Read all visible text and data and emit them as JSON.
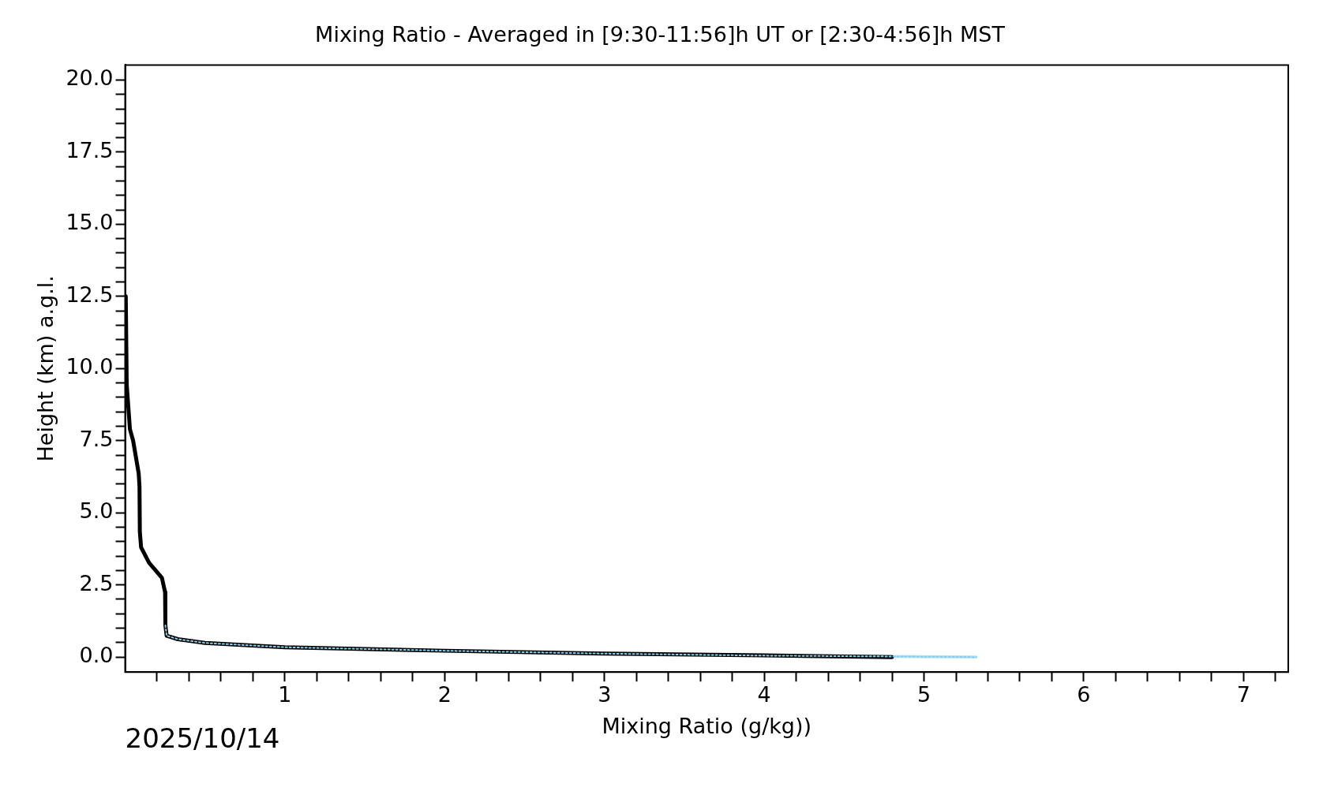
{
  "chart_data": {
    "type": "line",
    "title": "Mixing Ratio - Averaged in [9:30-11:56]h UT or [2:30-4:56]h MST",
    "xlabel": "Mixing Ratio (g/kg))",
    "ylabel": "Height (km) a.g.l.",
    "annotations": [
      "2025/10/14"
    ],
    "series": [
      {
        "color": "#000000",
        "line_style": "solid",
        "x": [
          0.004,
          0.01,
          0.03,
          0.05,
          0.085,
          0.09,
          0.092,
          0.1,
          0.15,
          0.23,
          0.25,
          0.252,
          0.26,
          0.33,
          0.5,
          1,
          2,
          3,
          4,
          4.8
        ],
        "values": [
          12.5,
          9.44,
          7.9,
          7.5,
          6.36,
          5.9,
          4.35,
          3.8,
          3.27,
          2.75,
          2.25,
          1.1,
          0.74,
          0.62,
          0.49,
          0.34,
          0.22,
          0.12,
          0.06,
          0.0
        ]
      },
      {
        "color": "#87ceeb",
        "line_style": "dotted",
        "x": [
          0.252,
          0.26,
          0.33,
          0.5,
          1,
          2,
          3,
          4,
          4.8,
          5.33
        ],
        "values": [
          1.1,
          0.74,
          0.62,
          0.49,
          0.34,
          0.22,
          0.12,
          0.05,
          0.02,
          0.0
        ],
        "lower": [
          1.05,
          0.69,
          0.57,
          0.44,
          0.29,
          0.17,
          0.07,
          0.0,
          -0.03,
          -0.05
        ],
        "upper": [
          1.15,
          0.79,
          0.67,
          0.54,
          0.39,
          0.27,
          0.17,
          0.1,
          0.07,
          0.05
        ]
      }
    ],
    "xlim": [
      0,
      7.28
    ],
    "ylim": [
      -0.52,
      20.52
    ],
    "xticks": [
      {
        "value": 0.2,
        "label": null
      },
      {
        "value": 0.4,
        "label": null
      },
      {
        "value": 0.6,
        "label": null
      },
      {
        "value": 0.8,
        "label": null
      },
      1,
      {
        "value": 1.2,
        "label": null
      },
      {
        "value": 1.4,
        "label": null
      },
      {
        "value": 1.6,
        "label": null
      },
      {
        "value": 1.8,
        "label": null
      },
      2,
      {
        "value": 2.2,
        "label": null
      },
      {
        "value": 2.4,
        "label": null
      },
      {
        "value": 2.6,
        "label": null
      },
      {
        "value": 2.8,
        "label": null
      },
      3,
      {
        "value": 3.2,
        "label": null
      },
      {
        "value": 3.4,
        "label": null
      },
      {
        "value": 3.6,
        "label": null
      },
      {
        "value": 3.8,
        "label": null
      },
      4,
      {
        "value": 4.2,
        "label": null
      },
      {
        "value": 4.4,
        "label": null
      },
      {
        "value": 4.6,
        "label": null
      },
      {
        "value": 4.8,
        "label": null
      },
      5,
      {
        "value": 5.2,
        "label": null
      },
      {
        "value": 5.4,
        "label": null
      },
      {
        "value": 5.6,
        "label": null
      },
      {
        "value": 5.8,
        "label": null
      },
      6,
      {
        "value": 6.2,
        "label": null
      },
      {
        "value": 6.4,
        "label": null
      },
      {
        "value": 6.6,
        "label": null
      },
      {
        "value": 6.8,
        "label": null
      },
      7,
      {
        "value": 7.2,
        "label": null
      }
    ],
    "yticks": [
      {
        "value": 0,
        "label": "0.0"
      },
      {
        "value": 0.5,
        "label": null
      },
      {
        "value": 1,
        "label": null
      },
      {
        "value": 1.5,
        "label": null
      },
      {
        "value": 2,
        "label": null
      },
      2.5,
      {
        "value": 3,
        "label": null
      },
      {
        "value": 3.5,
        "label": null
      },
      {
        "value": 4,
        "label": null
      },
      {
        "value": 4.5,
        "label": null
      },
      {
        "value": 5,
        "label": "5.0"
      },
      {
        "value": 5.5,
        "label": null
      },
      {
        "value": 6,
        "label": null
      },
      {
        "value": 6.5,
        "label": null
      },
      {
        "value": 7,
        "label": null
      },
      7.5,
      {
        "value": 8,
        "label": null
      },
      {
        "value": 8.5,
        "label": null
      },
      {
        "value": 9,
        "label": null
      },
      {
        "value": 9.5,
        "label": null
      },
      {
        "value": 10,
        "label": "10.0"
      },
      {
        "value": 10.5,
        "label": null
      },
      {
        "value": 11,
        "label": null
      },
      {
        "value": 11.5,
        "label": null
      },
      {
        "value": 12,
        "label": null
      },
      12.5,
      {
        "value": 13,
        "label": null
      },
      {
        "value": 13.5,
        "label": null
      },
      {
        "value": 14,
        "label": null
      },
      {
        "value": 14.5,
        "label": null
      },
      {
        "value": 15,
        "label": "15.0"
      },
      {
        "value": 15.5,
        "label": null
      },
      {
        "value": 16,
        "label": null
      },
      {
        "value": 16.5,
        "label": null
      },
      {
        "value": 17,
        "label": null
      },
      17.5,
      {
        "value": 18,
        "label": null
      },
      {
        "value": 18.5,
        "label": null
      },
      {
        "value": 19,
        "label": null
      },
      {
        "value": 19.5,
        "label": null
      },
      {
        "value": 20,
        "label": "20.0"
      }
    ],
    "grid": false,
    "legend": false
  }
}
